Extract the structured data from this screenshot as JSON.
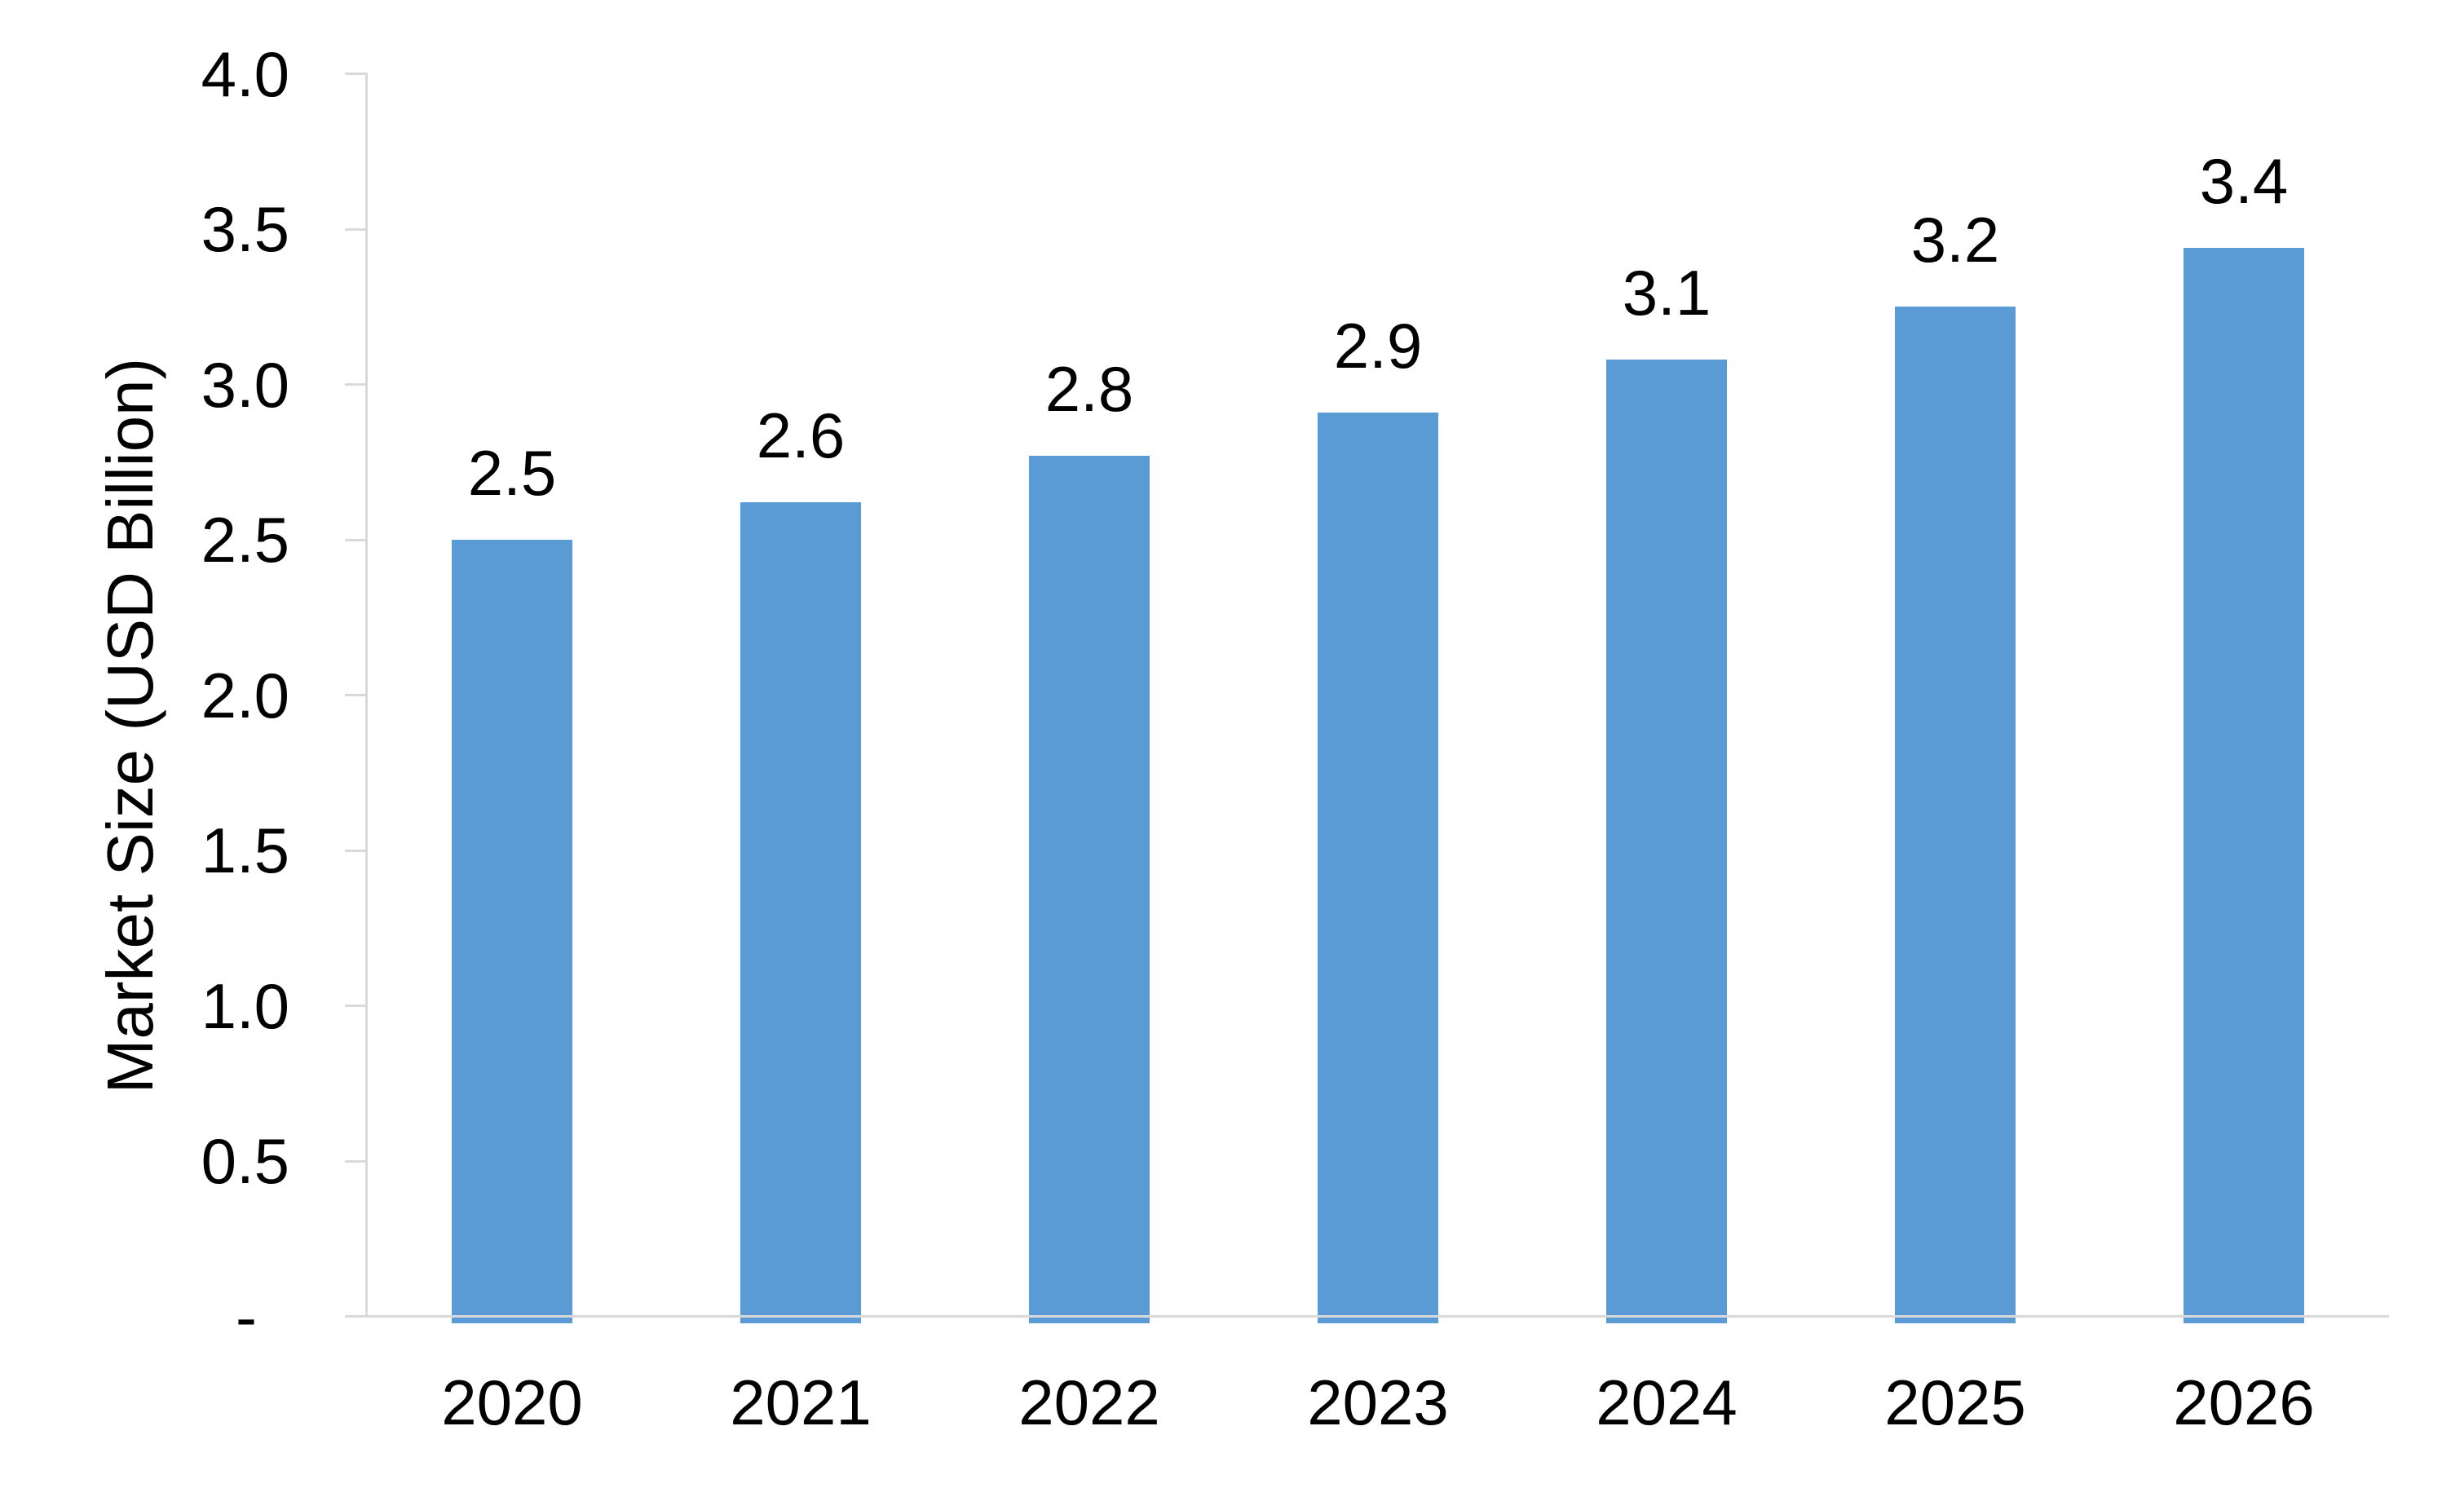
{
  "chart_data": {
    "type": "bar",
    "title": "",
    "categories": [
      "2020",
      "2021",
      "2022",
      "2023",
      "2024",
      "2025",
      "2026"
    ],
    "values": [
      2.5,
      2.6,
      2.8,
      2.9,
      3.1,
      3.2,
      3.4
    ],
    "bar_labels": [
      "2.5",
      "2.6",
      "2.8",
      "2.9",
      "3.1",
      "3.2",
      "3.4"
    ],
    "bar_heights_estimated": [
      2.5,
      2.62,
      2.77,
      2.91,
      3.08,
      3.25,
      3.44
    ],
    "xlabel": "",
    "ylabel": "Market Size (USD Billion)",
    "ylim": [
      0,
      4.0
    ],
    "ytick_step": 0.5,
    "ytick_labels_top_to_bottom": [
      "4.0",
      "3.5",
      "3.0",
      "2.5",
      "2.0",
      "1.5",
      "1.0",
      "0.5",
      "-"
    ],
    "zero_tick_label": "-",
    "grid": false,
    "legend": null,
    "colors": {
      "bar": "#5B9BD5",
      "axis_line": "#D9D9D9",
      "text": "#000000",
      "background": "#FFFFFF"
    }
  }
}
